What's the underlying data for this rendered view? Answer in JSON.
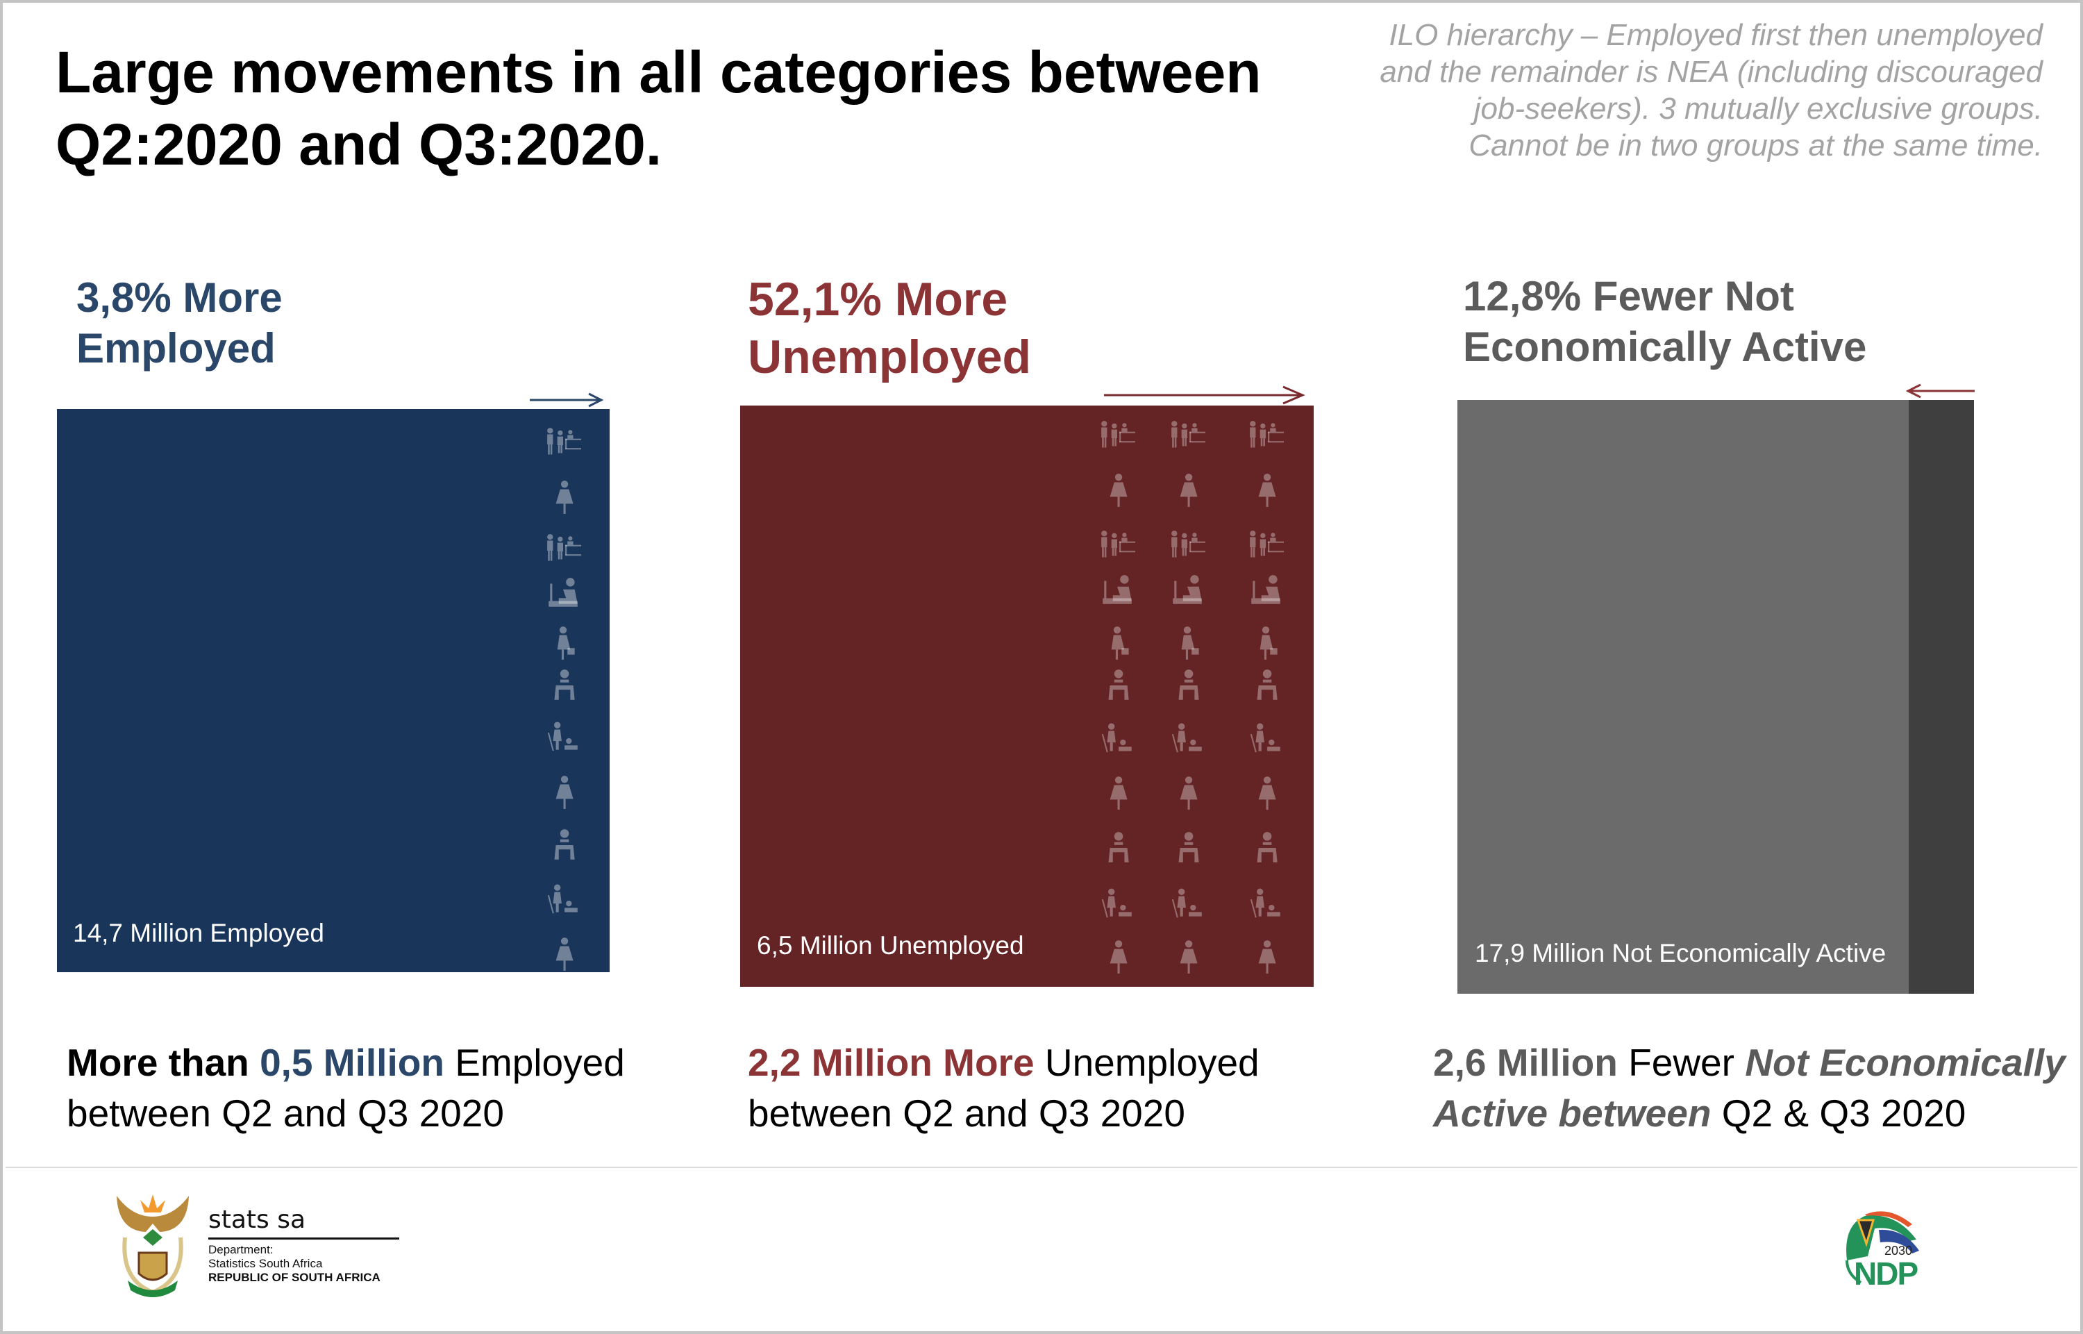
{
  "title": {
    "line1": "Large movements in all categories between",
    "line2": "Q2:2020 and Q3:2020."
  },
  "note": {
    "line1": "ILO hierarchy – Employed first then unemployed",
    "line2": "and the remainder is NEA (including discouraged",
    "line3": "job-seekers). 3 mutually exclusive groups.",
    "line4": "Cannot be in two groups at the same time."
  },
  "colors": {
    "employed": "#19355a",
    "unemployed": "#642426",
    "nea": "#6b6b6b",
    "nea_change": "#3f3f3f"
  },
  "panels": [
    {
      "heading_line1": "3,8% More",
      "heading_line2": "Employed",
      "inside_label": "14,7 Million Employed",
      "change_pct": 3.8,
      "bottom": {
        "part1": "More than ",
        "part2": "0,5 Million",
        "part3": " Employed",
        "line2": "between Q2 and Q3 2020"
      }
    },
    {
      "heading_line1": "52,1% More",
      "heading_line2": "Unemployed",
      "inside_label": "6,5 Million Unemployed",
      "change_pct": 52.1,
      "bottom": {
        "part1": "2,2 Million More",
        "part2": " Unemployed",
        "line2": "between Q2 and Q3 2020"
      }
    },
    {
      "heading_line1": "12,8% Fewer Not",
      "heading_line2": "Economically Active",
      "inside_label": "17,9 Million Not Economically Active",
      "change_pct": -12.8,
      "bottom": {
        "part1": "2,6 Million",
        "part2": " Fewer ",
        "part3": "Not Economically",
        "part4": "Active between",
        "part5": " Q2 & Q3 2020"
      }
    }
  ],
  "icon_rows": [
    "group-desk",
    "woman",
    "group-desk",
    "call-center",
    "woman-briefcase",
    "seated-worker",
    "cleaner",
    "woman",
    "seated-worker",
    "cleaner",
    "woman"
  ],
  "footer": {
    "logo_name": "stats sa",
    "dept_line1": "Department:",
    "dept_line2": "Statistics South Africa",
    "dept_line3": "REPUBLIC OF SOUTH AFRICA",
    "ndp_year": "2030",
    "ndp_text": "NDP"
  }
}
